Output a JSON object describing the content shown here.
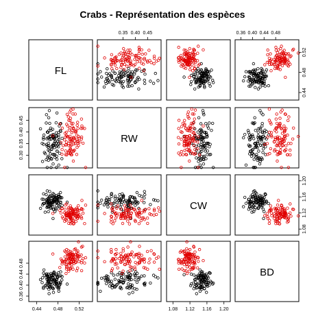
{
  "chart_data": {
    "type": "scatter",
    "title": "Crabs - Représentation des espèces",
    "variables": [
      "FL",
      "RW",
      "CW",
      "BD"
    ],
    "ranges": {
      "FL": [
        0.425,
        0.545
      ],
      "RW": [
        0.245,
        0.505
      ],
      "CW": [
        1.065,
        1.215
      ],
      "BD": [
        0.34,
        0.56
      ]
    },
    "ticks": {
      "FL": {
        "values": [
          0.44,
          0.48,
          0.52
        ],
        "labels": [
          "0.44",
          "0.48",
          "0.52"
        ]
      },
      "RW": {
        "values": [
          0.35,
          0.4,
          0.45
        ],
        "labels": [
          "0.35",
          "0.40",
          "0.45"
        ]
      },
      "CW": {
        "values": [
          1.08,
          1.12,
          1.16,
          1.2
        ],
        "labels": [
          "1.08",
          "1.12",
          "1.16",
          "1.20"
        ]
      },
      "BD": {
        "values": [
          0.36,
          0.4,
          0.44,
          0.48
        ],
        "labels": [
          "0.36",
          "0.40",
          "0.44",
          "0.48"
        ]
      },
      "FL_right": {
        "values": [
          0.44,
          0.48,
          0.52
        ],
        "labels": [
          "0.44",
          "0.48",
          "0.52"
        ]
      },
      "RW_left": {
        "values": [
          0.3,
          0.35,
          0.4,
          0.45
        ],
        "labels": [
          "0.30",
          "0.35",
          "0.40",
          "0.45"
        ]
      },
      "BD_left": {
        "values": [
          0.36,
          0.4,
          0.44,
          0.48
        ],
        "labels": [
          "0.36",
          "0.40",
          "0.44",
          "0.48"
        ]
      }
    },
    "tick_placement": {
      "top": [
        "RW",
        "BD"
      ],
      "bottom": [
        "FL",
        "CW"
      ],
      "left": [
        "RW",
        "BD"
      ],
      "right": [
        "FL",
        "CW"
      ]
    },
    "series": [
      {
        "color": "#000000",
        "centers": {
          "FL": 0.47,
          "RW": 0.355,
          "CW": 1.148,
          "BD": 0.415
        },
        "spread": {
          "FL": 0.01,
          "RW": 0.055,
          "CW": 0.012,
          "BD": 0.02
        }
      },
      {
        "color": "#e00000",
        "centers": {
          "FL": 0.505,
          "RW": 0.37,
          "CW": 1.118,
          "BD": 0.495
        },
        "spread": {
          "FL": 0.012,
          "RW": 0.055,
          "CW": 0.012,
          "BD": 0.02
        }
      }
    ],
    "points_per_series": 100,
    "marker": "open-circle"
  }
}
